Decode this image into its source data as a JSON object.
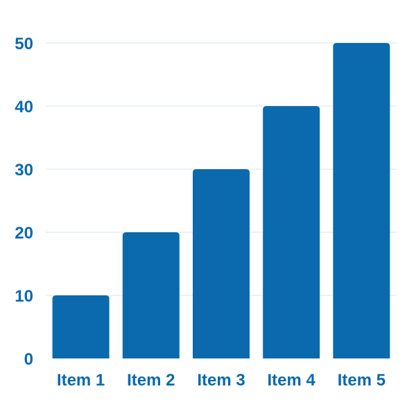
{
  "chart_data": {
    "type": "bar",
    "categories": [
      "Item 1",
      "Item 2",
      "Item 3",
      "Item 4",
      "Item 5"
    ],
    "values": [
      10,
      20,
      30,
      40,
      50
    ],
    "title": "",
    "xlabel": "",
    "ylabel": "",
    "ylim": [
      0,
      50
    ],
    "yticks": [
      0,
      10,
      20,
      30,
      40,
      50
    ],
    "grid": true,
    "legend": "none"
  },
  "colors": {
    "bar": "#0a6aad",
    "text": "#0a6aad",
    "grid": "#d6e4ef"
  }
}
